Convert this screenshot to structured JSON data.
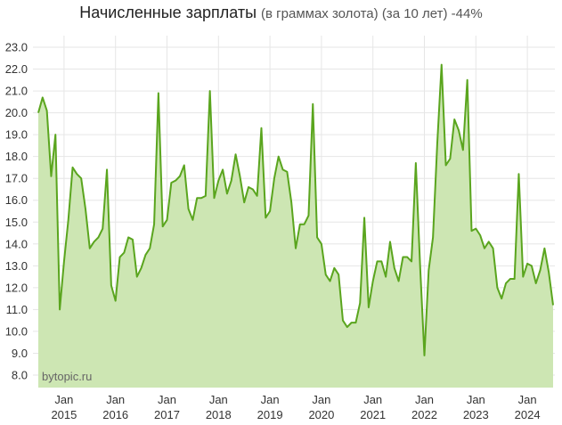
{
  "chart_data": {
    "type": "area",
    "title": "Начисленные зарплаты",
    "subtitle": "(в граммах золота) (за 10 лет) -44%",
    "watermark": "bytopic.ru",
    "ylim": [
      8.0,
      23.0
    ],
    "y_ticks": [
      "8.0",
      "9.0",
      "10.0",
      "11.0",
      "12.0",
      "13.0",
      "14.0",
      "15.0",
      "16.0",
      "17.0",
      "18.0",
      "19.0",
      "20.0",
      "21.0",
      "22.0",
      "23.0"
    ],
    "x_start": "2014-07",
    "x_ticks": [
      {
        "line1": "Jan",
        "line2": "2015",
        "date": "2015-01"
      },
      {
        "line1": "Jan",
        "line2": "2016",
        "date": "2016-01"
      },
      {
        "line1": "Jan",
        "line2": "2017",
        "date": "2017-01"
      },
      {
        "line1": "Jan",
        "line2": "2018",
        "date": "2018-01"
      },
      {
        "line1": "Jan",
        "line2": "2019",
        "date": "2019-01"
      },
      {
        "line1": "Jan",
        "line2": "2020",
        "date": "2020-01"
      },
      {
        "line1": "Jan",
        "line2": "2021",
        "date": "2021-01"
      },
      {
        "line1": "Jan",
        "line2": "2022",
        "date": "2022-01"
      },
      {
        "line1": "Jan",
        "line2": "2023",
        "date": "2023-01"
      },
      {
        "line1": "Jan",
        "line2": "2024",
        "date": "2024-01"
      }
    ],
    "series": [
      {
        "line_color": "#5aa51e",
        "fill_color": "#cde6b3",
        "values": [
          20.0,
          20.7,
          20.1,
          17.1,
          19.0,
          11.0,
          13.2,
          15.1,
          17.5,
          17.2,
          17.0,
          15.6,
          13.8,
          14.1,
          14.3,
          14.7,
          17.4,
          12.1,
          11.4,
          13.4,
          13.6,
          14.3,
          14.2,
          12.5,
          12.9,
          13.5,
          13.8,
          14.9,
          20.9,
          14.8,
          15.1,
          16.8,
          16.9,
          17.1,
          17.6,
          15.6,
          15.1,
          16.1,
          16.1,
          16.2,
          21.0,
          16.1,
          16.9,
          17.4,
          16.3,
          16.9,
          18.1,
          17.1,
          15.9,
          16.6,
          16.5,
          16.2,
          19.3,
          15.2,
          15.5,
          17.0,
          18.0,
          17.4,
          17.3,
          15.9,
          13.8,
          14.9,
          14.9,
          15.3,
          20.4,
          14.3,
          14.0,
          12.6,
          12.3,
          12.9,
          12.6,
          10.5,
          10.2,
          10.4,
          10.4,
          11.3,
          15.2,
          11.1,
          12.3,
          13.2,
          13.2,
          12.5,
          14.1,
          12.9,
          12.3,
          13.4,
          13.4,
          13.2,
          17.7,
          13.0,
          8.9,
          12.8,
          14.3,
          18.6,
          22.2,
          17.6,
          17.9,
          19.7,
          19.2,
          18.3,
          21.5,
          14.6,
          14.7,
          14.4,
          13.8,
          14.1,
          13.8,
          12.0,
          11.5,
          12.2,
          12.4,
          12.4,
          17.2,
          12.5,
          13.1,
          13.0,
          12.2,
          12.8,
          13.8,
          12.7,
          11.2
        ]
      }
    ]
  }
}
